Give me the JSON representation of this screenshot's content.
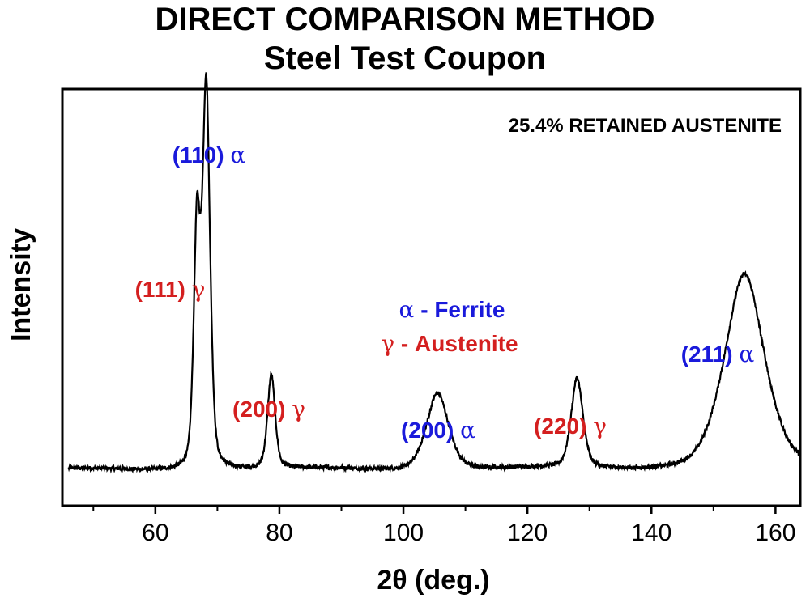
{
  "chart_data": {
    "type": "line",
    "title": "DIRECT COMPARISON METHOD",
    "subtitle": "Steel Test Coupon",
    "xlabel": "2θ (deg.)",
    "ylabel": "Intensity",
    "xlim": [
      45,
      164
    ],
    "ylim": [
      0,
      1.07
    ],
    "xticks_major": [
      60,
      80,
      100,
      120,
      140,
      160
    ],
    "xticks_minor": [
      50,
      70,
      90,
      110,
      130,
      150
    ],
    "annotation": "25.4% RETAINED AUSTENITE",
    "legend": [
      {
        "symbol": "α",
        "text": " - Ferrite",
        "color": "#1a1adb"
      },
      {
        "symbol": "γ",
        "text": " - Austenite",
        "color": "#d41f1f"
      }
    ],
    "baseline": 0.092,
    "peaks": [
      {
        "hkl": "(111)",
        "phase": "γ",
        "x": 66.7,
        "height": 0.6,
        "width": 0.55,
        "color": "#d41f1f"
      },
      {
        "hkl": "(110)",
        "phase": "α",
        "x": 68.2,
        "height": 0.98,
        "width": 0.65,
        "color": "#1a1adb"
      },
      {
        "hkl": "(200)",
        "phase": "γ",
        "x": 78.7,
        "height": 0.24,
        "width": 0.65,
        "color": "#d41f1f"
      },
      {
        "hkl": "(200)",
        "phase": "α",
        "x": 105.5,
        "height": 0.2,
        "width": 1.9,
        "color": "#1a1adb"
      },
      {
        "hkl": "(220)",
        "phase": "γ",
        "x": 128.0,
        "height": 0.23,
        "width": 1.0,
        "color": "#d41f1f"
      },
      {
        "hkl": "(211)",
        "phase": "α",
        "x": 155.0,
        "height": 0.5,
        "width": 3.4,
        "color": "#1a1adb"
      }
    ],
    "grid": false,
    "line_color": "#000000"
  }
}
